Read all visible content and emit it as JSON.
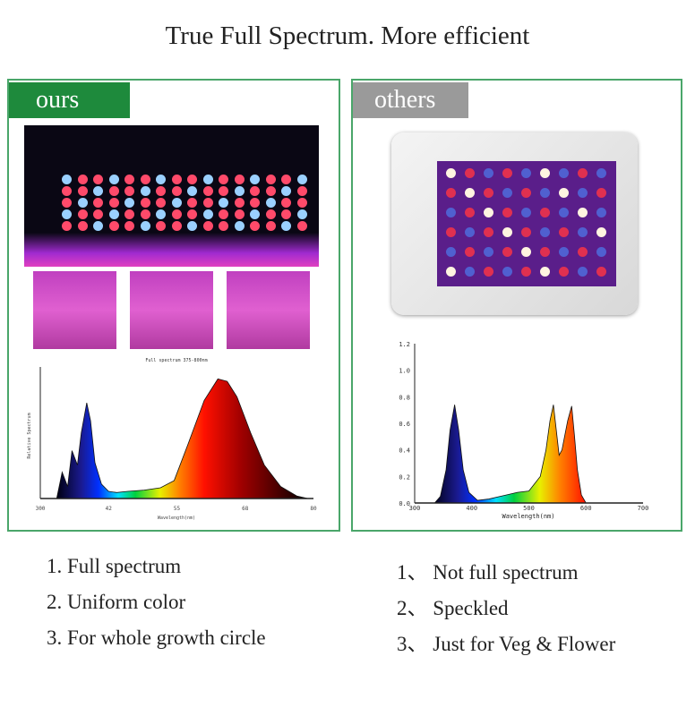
{
  "title": "True Full Spectrum. More efficient",
  "ours": {
    "tag": "ours",
    "tag_color": "#1e8a3c",
    "features": [
      "1. Full spectrum",
      "2. Uniform color",
      "3. For whole growth circle"
    ]
  },
  "others": {
    "tag": "others",
    "tag_color": "#9a9a9a",
    "features": [
      "1、 Not full spectrum",
      "2、 Speckled",
      "3、 Just for Veg & Flower"
    ]
  },
  "chart_data": [
    {
      "type": "area",
      "title": "Full spectrum 375-800nm",
      "xlabel": "Wavelength(nm)",
      "ylabel": "Relative Spectrum",
      "xlim": [
        300,
        800
      ],
      "ylim": [
        0,
        1.1
      ],
      "xtick_labels": [
        "300",
        "42",
        "55",
        "68",
        "80"
      ],
      "x": [
        330,
        340,
        350,
        358,
        368,
        375,
        385,
        392,
        400,
        412,
        425,
        440,
        460,
        490,
        520,
        545,
        570,
        600,
        625,
        642,
        660,
        685,
        710,
        740,
        770,
        790
      ],
      "y": [
        0,
        0.22,
        0.1,
        0.4,
        0.28,
        0.55,
        0.8,
        0.65,
        0.3,
        0.12,
        0.06,
        0.05,
        0.06,
        0.07,
        0.09,
        0.15,
        0.45,
        0.82,
        1.0,
        0.98,
        0.85,
        0.55,
        0.28,
        0.1,
        0.02,
        0
      ]
    },
    {
      "type": "area",
      "title": "",
      "xlabel": "Wavelength(nm)",
      "ylabel": "",
      "xlim": [
        300,
        700
      ],
      "ylim": [
        0,
        1.2
      ],
      "xticks": [
        300,
        400,
        500,
        600,
        700
      ],
      "yticks": [
        "0.0",
        "0.2",
        "0.4",
        "0.6",
        "0.8",
        "1.0",
        "1.2"
      ],
      "x": [
        300,
        335,
        345,
        355,
        362,
        370,
        377,
        385,
        395,
        410,
        430,
        460,
        480,
        500,
        520,
        530,
        537,
        543,
        548,
        553,
        558,
        568,
        575,
        580,
        585,
        592,
        600,
        640
      ],
      "y": [
        0,
        0,
        0.05,
        0.25,
        0.55,
        0.74,
        0.55,
        0.25,
        0.08,
        0.02,
        0.03,
        0.06,
        0.08,
        0.09,
        0.2,
        0.4,
        0.62,
        0.74,
        0.55,
        0.36,
        0.4,
        0.62,
        0.73,
        0.5,
        0.25,
        0.06,
        0,
        0
      ]
    }
  ]
}
